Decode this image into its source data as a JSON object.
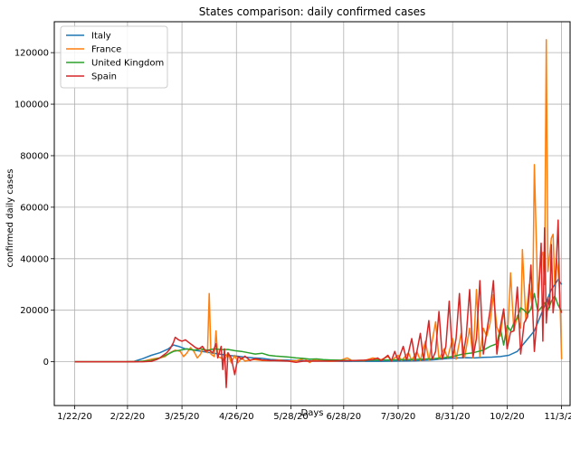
{
  "chart_data": {
    "type": "line",
    "title": "States comparison: daily confirmed cases",
    "xlabel": "Days",
    "ylabel": "confirmed daily cases",
    "x_tick_labels": [
      "1/22/20",
      "2/22/20",
      "3/25/20",
      "4/26/20",
      "5/28/20",
      "6/28/20",
      "7/30/20",
      "8/31/20",
      "10/2/20",
      "11/3/20"
    ],
    "x_tick_days": [
      0,
      31,
      63,
      95,
      127,
      158,
      190,
      222,
      254,
      286
    ],
    "xlim_days": [
      -12,
      291
    ],
    "ylim": [
      -17000,
      132000
    ],
    "y_ticks": [
      0,
      20000,
      40000,
      60000,
      80000,
      100000,
      120000
    ],
    "grid": true,
    "legend_position": "top-left",
    "series": [
      {
        "name": "Italy",
        "color": "#1f77b4",
        "points": [
          [
            0,
            0
          ],
          [
            30,
            0
          ],
          [
            35,
            200
          ],
          [
            40,
            1200
          ],
          [
            45,
            2500
          ],
          [
            50,
            3500
          ],
          [
            55,
            5000
          ],
          [
            58,
            6500
          ],
          [
            61,
            6000
          ],
          [
            65,
            5000
          ],
          [
            70,
            4500
          ],
          [
            75,
            4000
          ],
          [
            80,
            3500
          ],
          [
            85,
            3000
          ],
          [
            90,
            2500
          ],
          [
            95,
            2200
          ],
          [
            100,
            1800
          ],
          [
            105,
            1500
          ],
          [
            110,
            1300
          ],
          [
            115,
            900
          ],
          [
            120,
            700
          ],
          [
            125,
            600
          ],
          [
            130,
            500
          ],
          [
            140,
            350
          ],
          [
            150,
            250
          ],
          [
            160,
            200
          ],
          [
            170,
            200
          ],
          [
            180,
            200
          ],
          [
            190,
            300
          ],
          [
            200,
            400
          ],
          [
            210,
            700
          ],
          [
            215,
            1000
          ],
          [
            220,
            1300
          ],
          [
            225,
            1500
          ],
          [
            230,
            1600
          ],
          [
            235,
            1500
          ],
          [
            240,
            1700
          ],
          [
            245,
            1800
          ],
          [
            250,
            2000
          ],
          [
            255,
            2500
          ],
          [
            260,
            4000
          ],
          [
            265,
            8000
          ],
          [
            270,
            12000
          ],
          [
            275,
            20000
          ],
          [
            280,
            28000
          ],
          [
            283,
            31000
          ],
          [
            284,
            32000
          ],
          [
            285,
            31000
          ],
          [
            286,
            30000
          ]
        ]
      },
      {
        "name": "France",
        "color": "#ff7f0e",
        "points": [
          [
            0,
            0
          ],
          [
            30,
            0
          ],
          [
            40,
            200
          ],
          [
            45,
            1000
          ],
          [
            50,
            1500
          ],
          [
            53,
            2000
          ],
          [
            56,
            3500
          ],
          [
            59,
            4500
          ],
          [
            62,
            4000
          ],
          [
            64,
            2000
          ],
          [
            66,
            3500
          ],
          [
            68,
            5500
          ],
          [
            70,
            4000
          ],
          [
            72,
            1500
          ],
          [
            74,
            3000
          ],
          [
            75,
            5000
          ],
          [
            78,
            3500
          ],
          [
            79,
            26500
          ],
          [
            80,
            3000
          ],
          [
            82,
            2000
          ],
          [
            83,
            12000
          ],
          [
            84,
            2000
          ],
          [
            86,
            1500
          ],
          [
            88,
            500
          ],
          [
            90,
            3500
          ],
          [
            92,
            -500
          ],
          [
            94,
            2500
          ],
          [
            96,
            -300
          ],
          [
            98,
            1500
          ],
          [
            100,
            300
          ],
          [
            105,
            900
          ],
          [
            110,
            500
          ],
          [
            115,
            400
          ],
          [
            120,
            600
          ],
          [
            125,
            300
          ],
          [
            130,
            400
          ],
          [
            135,
            1200
          ],
          [
            138,
            -300
          ],
          [
            140,
            600
          ],
          [
            145,
            400
          ],
          [
            150,
            200
          ],
          [
            155,
            300
          ],
          [
            160,
            1500
          ],
          [
            163,
            400
          ],
          [
            166,
            500
          ],
          [
            170,
            400
          ],
          [
            175,
            1500
          ],
          [
            180,
            800
          ],
          [
            184,
            2000
          ],
          [
            186,
            500
          ],
          [
            190,
            2500
          ],
          [
            192,
            500
          ],
          [
            196,
            3500
          ],
          [
            198,
            500
          ],
          [
            201,
            4000
          ],
          [
            203,
            500
          ],
          [
            206,
            8000
          ],
          [
            208,
            500
          ],
          [
            212,
            15500
          ],
          [
            214,
            1000
          ],
          [
            217,
            5000
          ],
          [
            219,
            1500
          ],
          [
            222,
            9000
          ],
          [
            224,
            1000
          ],
          [
            227,
            11000
          ],
          [
            229,
            1500
          ],
          [
            232,
            13000
          ],
          [
            234,
            1500
          ],
          [
            236,
            28000
          ],
          [
            238,
            2000
          ],
          [
            240,
            13000
          ],
          [
            242,
            10000
          ],
          [
            244,
            15000
          ],
          [
            246,
            26000
          ],
          [
            248,
            13500
          ],
          [
            250,
            10000
          ],
          [
            252,
            20000
          ],
          [
            254,
            6500
          ],
          [
            256,
            34500
          ],
          [
            258,
            12000
          ],
          [
            260,
            18000
          ],
          [
            262,
            13000
          ],
          [
            263,
            43500
          ],
          [
            265,
            16000
          ],
          [
            267,
            30000
          ],
          [
            269,
            20000
          ],
          [
            270,
            76500
          ],
          [
            272,
            25000
          ],
          [
            274,
            41000
          ],
          [
            275,
            42500
          ],
          [
            276,
            30000
          ],
          [
            277,
            125000
          ],
          [
            278,
            35000
          ],
          [
            280,
            48000
          ],
          [
            281,
            49500
          ],
          [
            282,
            30000
          ],
          [
            283,
            40000
          ],
          [
            284,
            35000
          ],
          [
            285,
            26000
          ],
          [
            286,
            1000
          ]
        ]
      },
      {
        "name": "United Kingdom",
        "color": "#2ca02c",
        "points": [
          [
            0,
            0
          ],
          [
            35,
            0
          ],
          [
            45,
            500
          ],
          [
            50,
            1500
          ],
          [
            55,
            3000
          ],
          [
            58,
            4000
          ],
          [
            62,
            4500
          ],
          [
            66,
            5000
          ],
          [
            70,
            4500
          ],
          [
            74,
            5000
          ],
          [
            78,
            4500
          ],
          [
            82,
            5000
          ],
          [
            86,
            4700
          ],
          [
            90,
            4800
          ],
          [
            94,
            4300
          ],
          [
            98,
            4000
          ],
          [
            102,
            3500
          ],
          [
            106,
            3000
          ],
          [
            110,
            3300
          ],
          [
            114,
            2500
          ],
          [
            118,
            2200
          ],
          [
            122,
            2000
          ],
          [
            126,
            1800
          ],
          [
            130,
            1500
          ],
          [
            134,
            1300
          ],
          [
            138,
            1000
          ],
          [
            142,
            1100
          ],
          [
            146,
            800
          ],
          [
            150,
            700
          ],
          [
            156,
            600
          ],
          [
            162,
            500
          ],
          [
            168,
            550
          ],
          [
            174,
            600
          ],
          [
            180,
            650
          ],
          [
            186,
            700
          ],
          [
            192,
            800
          ],
          [
            198,
            900
          ],
          [
            204,
            1000
          ],
          [
            210,
            1200
          ],
          [
            216,
            1500
          ],
          [
            222,
            2000
          ],
          [
            228,
            3000
          ],
          [
            234,
            3500
          ],
          [
            240,
            4500
          ],
          [
            244,
            6000
          ],
          [
            248,
            7000
          ],
          [
            250,
            13000
          ],
          [
            252,
            6500
          ],
          [
            254,
            14000
          ],
          [
            256,
            12000
          ],
          [
            258,
            15000
          ],
          [
            260,
            17000
          ],
          [
            262,
            21000
          ],
          [
            264,
            20000
          ],
          [
            266,
            18500
          ],
          [
            268,
            20500
          ],
          [
            270,
            26500
          ],
          [
            272,
            19500
          ],
          [
            274,
            21000
          ],
          [
            276,
            23000
          ],
          [
            278,
            20000
          ],
          [
            280,
            23500
          ],
          [
            282,
            25500
          ],
          [
            284,
            22000
          ],
          [
            286,
            19500
          ]
        ]
      },
      {
        "name": "Spain",
        "color": "#d62728",
        "points": [
          [
            0,
            0
          ],
          [
            40,
            0
          ],
          [
            45,
            200
          ],
          [
            48,
            800
          ],
          [
            50,
            1500
          ],
          [
            52,
            2500
          ],
          [
            54,
            3500
          ],
          [
            56,
            5000
          ],
          [
            58,
            7500
          ],
          [
            59,
            9500
          ],
          [
            61,
            8500
          ],
          [
            63,
            8000
          ],
          [
            65,
            8500
          ],
          [
            67,
            7500
          ],
          [
            69,
            6500
          ],
          [
            71,
            5500
          ],
          [
            73,
            5000
          ],
          [
            75,
            6000
          ],
          [
            77,
            4000
          ],
          [
            79,
            4500
          ],
          [
            81,
            3500
          ],
          [
            83,
            7000
          ],
          [
            84,
            1500
          ],
          [
            86,
            6000
          ],
          [
            87,
            -3000
          ],
          [
            88,
            5000
          ],
          [
            89,
            -10000
          ],
          [
            90,
            3500
          ],
          [
            92,
            1500
          ],
          [
            94,
            -5000
          ],
          [
            96,
            2000
          ],
          [
            98,
            1000
          ],
          [
            100,
            2200
          ],
          [
            103,
            500
          ],
          [
            106,
            1200
          ],
          [
            110,
            700
          ],
          [
            115,
            500
          ],
          [
            120,
            400
          ],
          [
            125,
            300
          ],
          [
            130,
            -200
          ],
          [
            135,
            300
          ],
          [
            140,
            250
          ],
          [
            145,
            250
          ],
          [
            150,
            300
          ],
          [
            155,
            350
          ],
          [
            160,
            400
          ],
          [
            165,
            500
          ],
          [
            170,
            600
          ],
          [
            175,
            800
          ],
          [
            178,
            1500
          ],
          [
            180,
            400
          ],
          [
            184,
            2500
          ],
          [
            186,
            300
          ],
          [
            188,
            4000
          ],
          [
            190,
            500
          ],
          [
            193,
            6000
          ],
          [
            195,
            500
          ],
          [
            198,
            9000
          ],
          [
            200,
            500
          ],
          [
            203,
            11000
          ],
          [
            205,
            600
          ],
          [
            208,
            16000
          ],
          [
            210,
            800
          ],
          [
            212,
            4000
          ],
          [
            214,
            19500
          ],
          [
            216,
            1000
          ],
          [
            218,
            6000
          ],
          [
            220,
            23500
          ],
          [
            222,
            1500
          ],
          [
            224,
            9000
          ],
          [
            226,
            26500
          ],
          [
            228,
            1500
          ],
          [
            230,
            10000
          ],
          [
            232,
            28000
          ],
          [
            234,
            2000
          ],
          [
            236,
            9000
          ],
          [
            238,
            31500
          ],
          [
            240,
            3000
          ],
          [
            242,
            11500
          ],
          [
            244,
            20000
          ],
          [
            246,
            31500
          ],
          [
            248,
            3000
          ],
          [
            250,
            13500
          ],
          [
            252,
            20500
          ],
          [
            254,
            5000
          ],
          [
            256,
            11500
          ],
          [
            258,
            12000
          ],
          [
            260,
            29000
          ],
          [
            262,
            3000
          ],
          [
            264,
            15000
          ],
          [
            266,
            17500
          ],
          [
            268,
            37500
          ],
          [
            270,
            4000
          ],
          [
            272,
            20000
          ],
          [
            274,
            46000
          ],
          [
            275,
            8000
          ],
          [
            276,
            52000
          ],
          [
            277,
            15000
          ],
          [
            278,
            25000
          ],
          [
            279,
            21000
          ],
          [
            280,
            45500
          ],
          [
            281,
            19000
          ],
          [
            282,
            25000
          ],
          [
            284,
            55000
          ],
          [
            285,
            21000
          ],
          [
            286,
            19000
          ]
        ]
      }
    ]
  }
}
